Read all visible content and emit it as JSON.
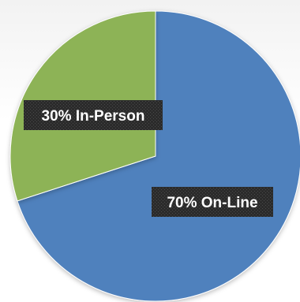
{
  "chart_data": {
    "type": "pie",
    "title": "",
    "slices": [
      {
        "label": "70% On-Line",
        "value": 70,
        "color": "#4f81bd"
      },
      {
        "label": "30% In-Person",
        "value": 30,
        "color": "#8db356"
      }
    ],
    "start_angle_deg": 0,
    "direction": "clockwise",
    "legend": "none"
  }
}
